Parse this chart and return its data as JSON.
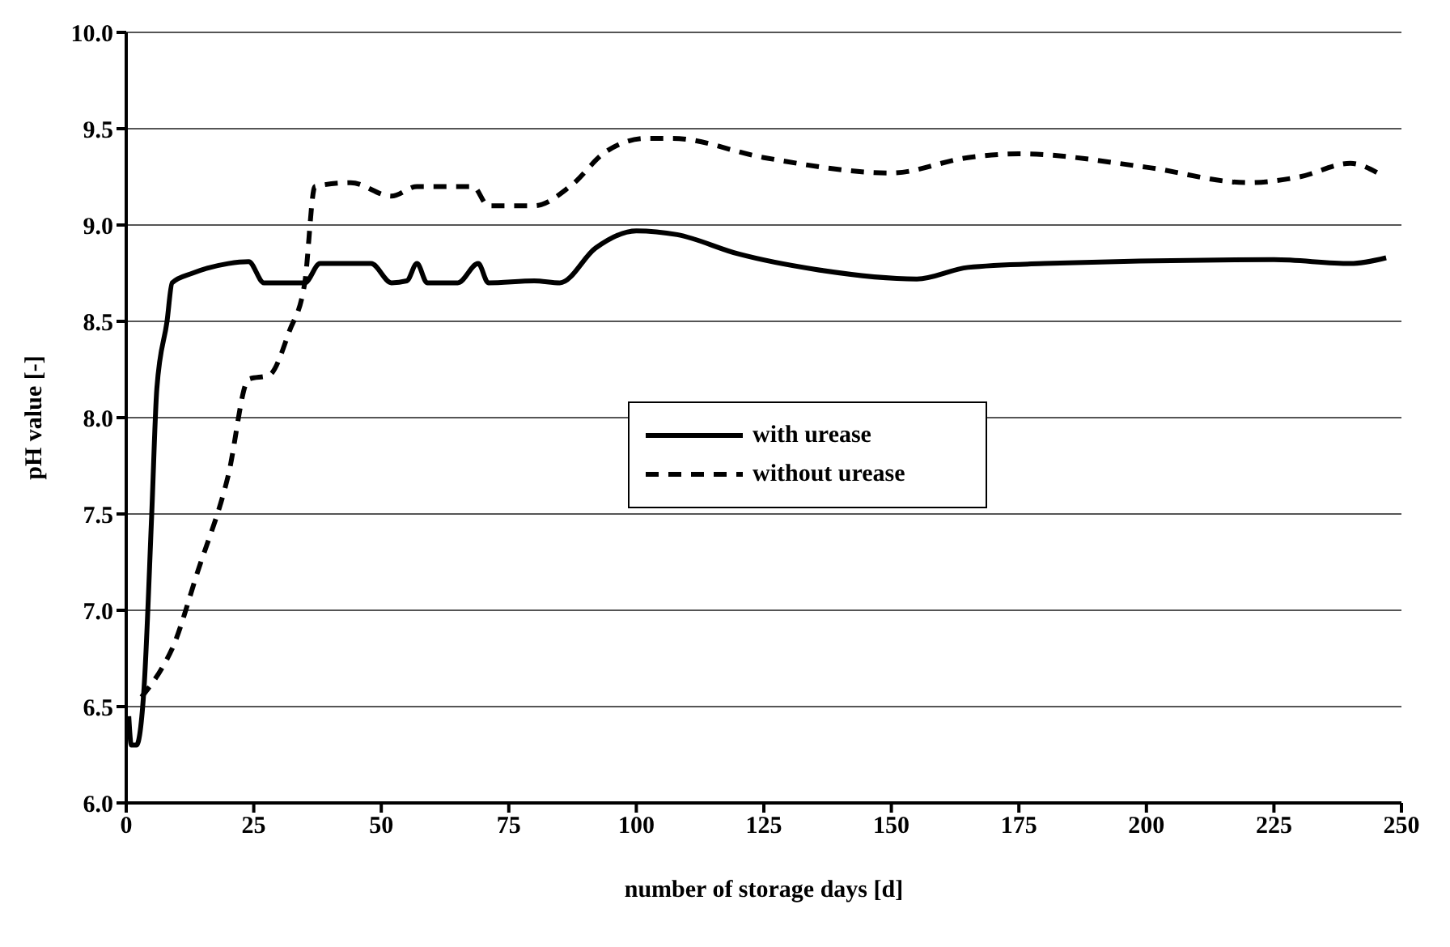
{
  "chart_data": {
    "type": "line",
    "xlabel": "number of storage days [d]",
    "ylabel": "pH value [-]",
    "xlim": [
      0,
      250
    ],
    "xticks": [
      0,
      25,
      50,
      75,
      100,
      125,
      150,
      175,
      200,
      225,
      250
    ],
    "ylim": [
      6.0,
      10.0
    ],
    "yticks": [
      {
        "value": 6.0,
        "label": "6.0"
      },
      {
        "value": 6.5,
        "label": "6.5"
      },
      {
        "value": 7.0,
        "label": "7.0"
      },
      {
        "value": 7.5,
        "label": "7.5"
      },
      {
        "value": 8.0,
        "label": "8.0"
      },
      {
        "value": 8.5,
        "label": "8.5"
      },
      {
        "value": 9.0,
        "label": "9.0"
      },
      {
        "value": 9.5,
        "label": "9.5"
      },
      {
        "value": 10.0,
        "label": "10.0"
      }
    ],
    "grid": "y",
    "legend": "center",
    "marker": "none",
    "series": [
      {
        "name": "with urease",
        "color": "#000000",
        "line_style": "solid",
        "x": [
          0.5,
          1,
          2,
          3.5,
          5,
          6,
          8,
          9,
          13,
          20,
          24,
          27,
          35,
          38,
          48,
          52,
          55,
          57,
          59,
          65,
          69,
          71,
          80,
          85,
          92,
          100,
          108,
          120,
          135,
          155,
          165,
          180,
          225,
          240,
          247
        ],
        "values": [
          6.45,
          6.3,
          6.3,
          6.6,
          7.5,
          8.15,
          8.5,
          8.7,
          8.75,
          8.8,
          8.81,
          8.7,
          8.7,
          8.8,
          8.8,
          8.7,
          8.71,
          8.8,
          8.7,
          8.7,
          8.8,
          8.7,
          8.71,
          8.7,
          8.88,
          8.97,
          8.95,
          8.85,
          8.77,
          8.72,
          8.78,
          8.8,
          8.82,
          8.8,
          8.83
        ]
      },
      {
        "name": "without urease",
        "color": "#000000",
        "line_style": "dashed",
        "x": [
          3,
          7,
          9,
          14,
          20,
          24,
          28,
          32,
          35,
          37,
          44,
          52,
          57,
          68,
          71,
          80,
          87,
          94,
          102,
          107,
          125,
          150,
          165,
          175,
          200,
          220,
          230,
          240,
          246
        ],
        "values": [
          6.55,
          6.7,
          6.8,
          7.2,
          7.7,
          8.2,
          8.22,
          8.45,
          8.7,
          9.2,
          9.22,
          9.15,
          9.2,
          9.2,
          9.1,
          9.1,
          9.2,
          9.38,
          9.45,
          9.45,
          9.35,
          9.27,
          9.35,
          9.37,
          9.3,
          9.22,
          9.25,
          9.32,
          9.26
        ]
      }
    ]
  }
}
